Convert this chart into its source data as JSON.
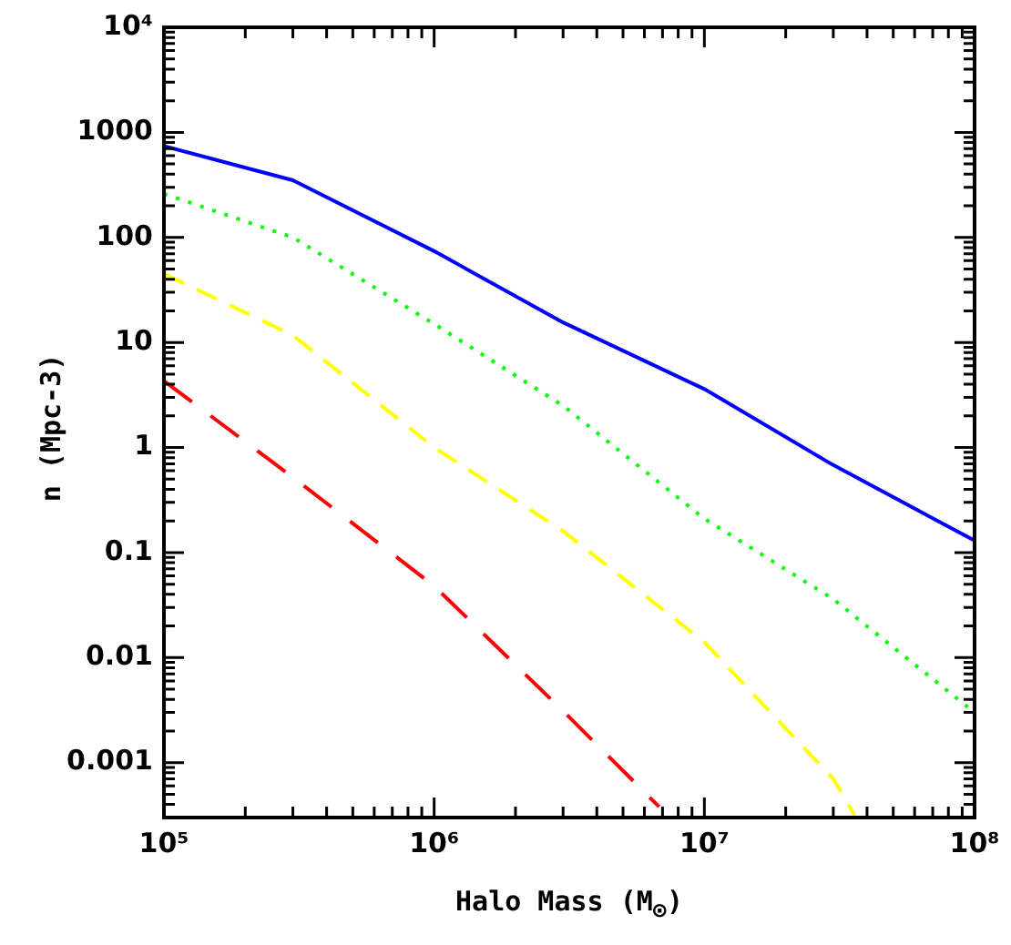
{
  "chart_data": {
    "type": "line",
    "xlabel": "Halo Mass (M$_{⊙}$)",
    "ylabel": "n (Mpc-3)",
    "log": "xy",
    "grid": false,
    "legend": false,
    "marker": "none",
    "xlim": [
      100000,
      100000000
    ],
    "ylim": [
      0.000316,
      10000
    ],
    "xticks": [
      {
        "value": 100000,
        "label": "10⁵"
      },
      {
        "value": 200000,
        "label": null
      },
      {
        "value": 300000,
        "label": null
      },
      {
        "value": 400000,
        "label": null
      },
      {
        "value": 500000,
        "label": null
      },
      {
        "value": 600000,
        "label": null
      },
      {
        "value": 700000,
        "label": null
      },
      {
        "value": 800000,
        "label": null
      },
      {
        "value": 900000,
        "label": null
      },
      {
        "value": 1000000,
        "label": "10⁶"
      },
      {
        "value": 2000000,
        "label": null
      },
      {
        "value": 3000000,
        "label": null
      },
      {
        "value": 4000000,
        "label": null
      },
      {
        "value": 5000000,
        "label": null
      },
      {
        "value": 6000000,
        "label": null
      },
      {
        "value": 7000000,
        "label": null
      },
      {
        "value": 8000000,
        "label": null
      },
      {
        "value": 9000000,
        "label": null
      },
      {
        "value": 10000000,
        "label": "10⁷"
      },
      {
        "value": 20000000,
        "label": null
      },
      {
        "value": 30000000,
        "label": null
      },
      {
        "value": 40000000,
        "label": null
      },
      {
        "value": 50000000,
        "label": null
      },
      {
        "value": 60000000,
        "label": null
      },
      {
        "value": 70000000,
        "label": null
      },
      {
        "value": 80000000,
        "label": null
      },
      {
        "value": 90000000,
        "label": null
      },
      {
        "value": 100000000,
        "label": "10⁸"
      }
    ],
    "yticks": [
      {
        "value": 0.0004,
        "label": null
      },
      {
        "value": 0.0005,
        "label": null
      },
      {
        "value": 0.0006,
        "label": null
      },
      {
        "value": 0.0007,
        "label": null
      },
      {
        "value": 0.0008,
        "label": null
      },
      {
        "value": 0.0009,
        "label": null
      },
      0.001,
      {
        "value": 0.002,
        "label": null
      },
      {
        "value": 0.003,
        "label": null
      },
      {
        "value": 0.004,
        "label": null
      },
      {
        "value": 0.005,
        "label": null
      },
      {
        "value": 0.006,
        "label": null
      },
      {
        "value": 0.007,
        "label": null
      },
      {
        "value": 0.008,
        "label": null
      },
      {
        "value": 0.009,
        "label": null
      },
      0.01,
      {
        "value": 0.02,
        "label": null
      },
      {
        "value": 0.03,
        "label": null
      },
      {
        "value": 0.04,
        "label": null
      },
      {
        "value": 0.05,
        "label": null
      },
      {
        "value": 0.06,
        "label": null
      },
      {
        "value": 0.07,
        "label": null
      },
      {
        "value": 0.08,
        "label": null
      },
      {
        "value": 0.09,
        "label": null
      },
      0.1,
      {
        "value": 0.2,
        "label": null
      },
      {
        "value": 0.3,
        "label": null
      },
      {
        "value": 0.4,
        "label": null
      },
      {
        "value": 0.5,
        "label": null
      },
      {
        "value": 0.6,
        "label": null
      },
      {
        "value": 0.7,
        "label": null
      },
      {
        "value": 0.8,
        "label": null
      },
      {
        "value": 0.9,
        "label": null
      },
      1,
      {
        "value": 2,
        "label": null
      },
      {
        "value": 3,
        "label": null
      },
      {
        "value": 4,
        "label": null
      },
      {
        "value": 5,
        "label": null
      },
      {
        "value": 6,
        "label": null
      },
      {
        "value": 7,
        "label": null
      },
      {
        "value": 8,
        "label": null
      },
      {
        "value": 9,
        "label": null
      },
      10,
      {
        "value": 20,
        "label": null
      },
      {
        "value": 30,
        "label": null
      },
      {
        "value": 40,
        "label": null
      },
      {
        "value": 50,
        "label": null
      },
      {
        "value": 60,
        "label": null
      },
      {
        "value": 70,
        "label": null
      },
      {
        "value": 80,
        "label": null
      },
      {
        "value": 90,
        "label": null
      },
      100,
      {
        "value": 200,
        "label": null
      },
      {
        "value": 300,
        "label": null
      },
      {
        "value": 400,
        "label": null
      },
      {
        "value": 500,
        "label": null
      },
      {
        "value": 600,
        "label": null
      },
      {
        "value": 700,
        "label": null
      },
      {
        "value": 800,
        "label": null
      },
      {
        "value": 900,
        "label": null
      },
      1000,
      {
        "value": 2000,
        "label": null
      },
      {
        "value": 3000,
        "label": null
      },
      {
        "value": 4000,
        "label": null
      },
      {
        "value": 5000,
        "label": null
      },
      {
        "value": 6000,
        "label": null
      },
      {
        "value": 7000,
        "label": null
      },
      {
        "value": 8000,
        "label": null
      },
      {
        "value": 9000,
        "label": null
      },
      {
        "value": 10000,
        "label": "10⁴"
      }
    ],
    "series": [
      {
        "color": "#0000ff",
        "line_style": "solid",
        "x": [
          100000,
          300000,
          1000000,
          3000000,
          10000000,
          30000000,
          100000000
        ],
        "values": [
          740,
          350,
          74,
          15.5,
          3.6,
          0.68,
          0.13
        ]
      },
      {
        "color": "#00ff00",
        "line_style": "dotted",
        "x": [
          100000,
          300000,
          1000000,
          3000000,
          10000000,
          30000000,
          100000000
        ],
        "values": [
          260,
          100,
          15,
          2.5,
          0.21,
          0.036,
          0.003
        ]
      },
      {
        "color": "#ffff00",
        "line_style": "dashed",
        "x": [
          100000,
          300000,
          1000000,
          3000000,
          10000000,
          30000000,
          36000000
        ],
        "values": [
          45,
          11.7,
          1,
          0.16,
          0.014,
          0.0007,
          0.000316
        ]
      },
      {
        "color": "#ff0000",
        "line_style": "dashed",
        "x": [
          100000,
          300000,
          1000000,
          3000000,
          6800000
        ],
        "values": [
          4.3,
          0.52,
          0.048,
          0.0031,
          0.00038
        ]
      }
    ]
  }
}
